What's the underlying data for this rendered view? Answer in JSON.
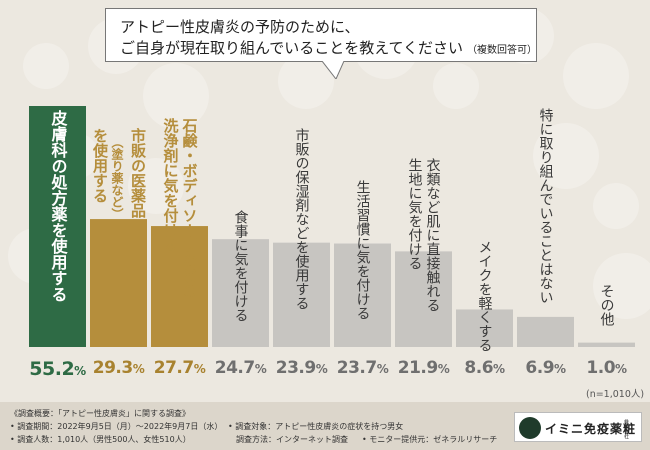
{
  "title": {
    "line1": "アトピー性皮膚炎の予防のために、",
    "line2": "ご自身が現在取り組んでいることを教えてください",
    "sub": "（複数回答可）"
  },
  "colors": {
    "highlight_green": "#2e6b45",
    "highlight_gold": "#b58e3c",
    "gray_bar": "#c7c5c1",
    "gray_label": "#3a3a3a",
    "pct_green": "#2e6b45",
    "pct_gold": "#a8822f",
    "pct_gray": "#6f6f6f"
  },
  "chart_data": {
    "type": "bar",
    "categories": [
      "皮膚科の処方薬を使用する",
      "市販の医薬品（塗り薬など）を使用する",
      "石鹸・ボディソープなどの洗浄剤に気を付ける",
      "食事に気を付ける",
      "市販の保湿剤などを使用する",
      "生活習慣に気を付ける",
      "衣類など肌に直接触れる生地に気を付ける",
      "メイクを軽くする",
      "特に取り組んでいることはない",
      "その他"
    ],
    "values": [
      55.2,
      29.3,
      27.7,
      24.7,
      23.9,
      23.7,
      21.9,
      8.6,
      6.9,
      1.0
    ],
    "value_labels": [
      "55.2",
      "29.3",
      "27.7",
      "24.7",
      "23.9",
      "23.7",
      "21.9",
      "8.6",
      "6.9",
      "1.0"
    ],
    "unit": "%",
    "note": "(n=1,010人)",
    "ylim": [
      0,
      60
    ],
    "grid": false,
    "label_lines": [
      [
        "皮膚科の処方薬を使用する"
      ],
      [
        "市販の医薬品",
        "（塗り薬など）",
        "を使用する"
      ],
      [
        "石鹸・ボディソープなどの",
        "洗浄剤に気を付ける"
      ],
      [
        "食事に気を付ける"
      ],
      [
        "市販の保湿剤などを使用する"
      ],
      [
        "生活習慣に気を付ける"
      ],
      [
        "衣類など肌に直接触れる",
        "生地に気を付ける"
      ],
      [
        "メイクを軽くする"
      ],
      [
        "特に取り組んでいることはない"
      ],
      [
        "その他"
      ]
    ],
    "bar_styles": [
      "green",
      "gold",
      "gold",
      "gray",
      "gray",
      "gray",
      "gray",
      "gray",
      "gray",
      "gray"
    ]
  },
  "footer": {
    "overview": "《調査概要：「アトピー性皮膚炎」に関する調査》",
    "period": "• 調査期間：2022年9月5日（月）～2022年9月7日（水）",
    "target": "• 調査対象：アトピー性皮膚炎の症状を持つ男女",
    "people": "• 調査人数：1,010人（男性500人、女性510人）",
    "method": "調査方法：インターネット調査",
    "provider": "• モニター提供元：ゼネラルリサーチ"
  },
  "logo": {
    "name": "イミニ免疫薬粧",
    "small": "株式会社"
  }
}
